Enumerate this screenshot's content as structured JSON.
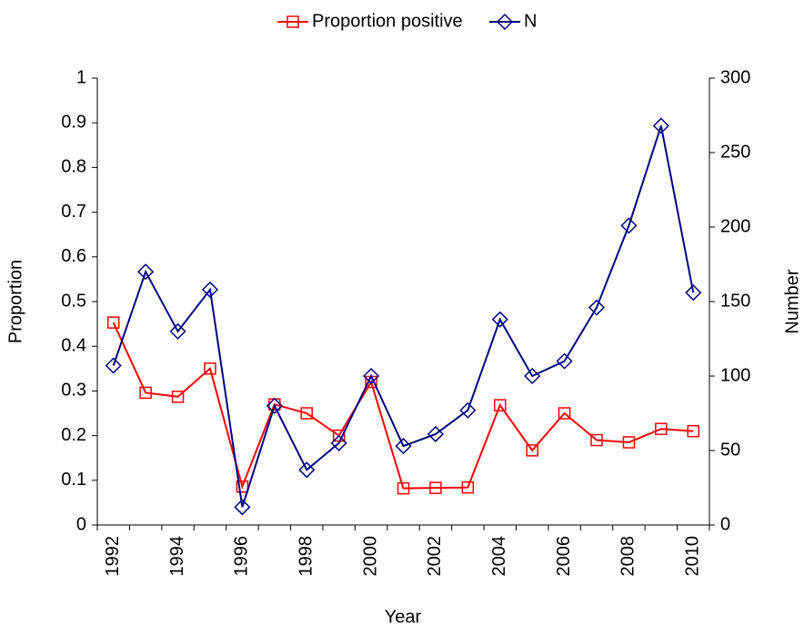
{
  "chart_data": {
    "type": "line",
    "x_label": "Year",
    "y_label": "Proportion",
    "y2_label": "Number",
    "categories": [
      "1992",
      null,
      "1994",
      null,
      "1996",
      null,
      "1998",
      null,
      "2000",
      null,
      "2002",
      null,
      "2004",
      null,
      "2006",
      null,
      "2008",
      null,
      "2010"
    ],
    "ylim": [
      0,
      1
    ],
    "yticks": [
      0,
      0.1,
      0.2,
      0.3,
      0.4,
      0.5,
      0.6,
      0.7,
      0.8,
      0.9,
      1
    ],
    "y2lim": [
      0,
      300
    ],
    "y2ticks": [
      0,
      50,
      100,
      150,
      200,
      250,
      300
    ],
    "legend": "top",
    "series": [
      {
        "name": "Proportion positive",
        "color": "#ff0000",
        "marker": "square",
        "values": [
          0.453,
          0.296,
          0.287,
          0.35,
          0.086,
          0.27,
          0.25,
          0.2,
          0.32,
          0.082,
          0.083,
          0.084,
          0.268,
          0.167,
          0.25,
          0.19,
          0.185,
          0.215,
          0.21
        ]
      },
      {
        "name": "N",
        "color": "#000080",
        "marker": "diamond",
        "axis": "y2",
        "values": [
          107,
          170,
          130,
          158,
          12,
          80,
          37,
          55,
          100,
          53,
          61,
          77,
          138,
          100,
          110,
          146,
          201,
          268,
          156
        ]
      }
    ]
  }
}
